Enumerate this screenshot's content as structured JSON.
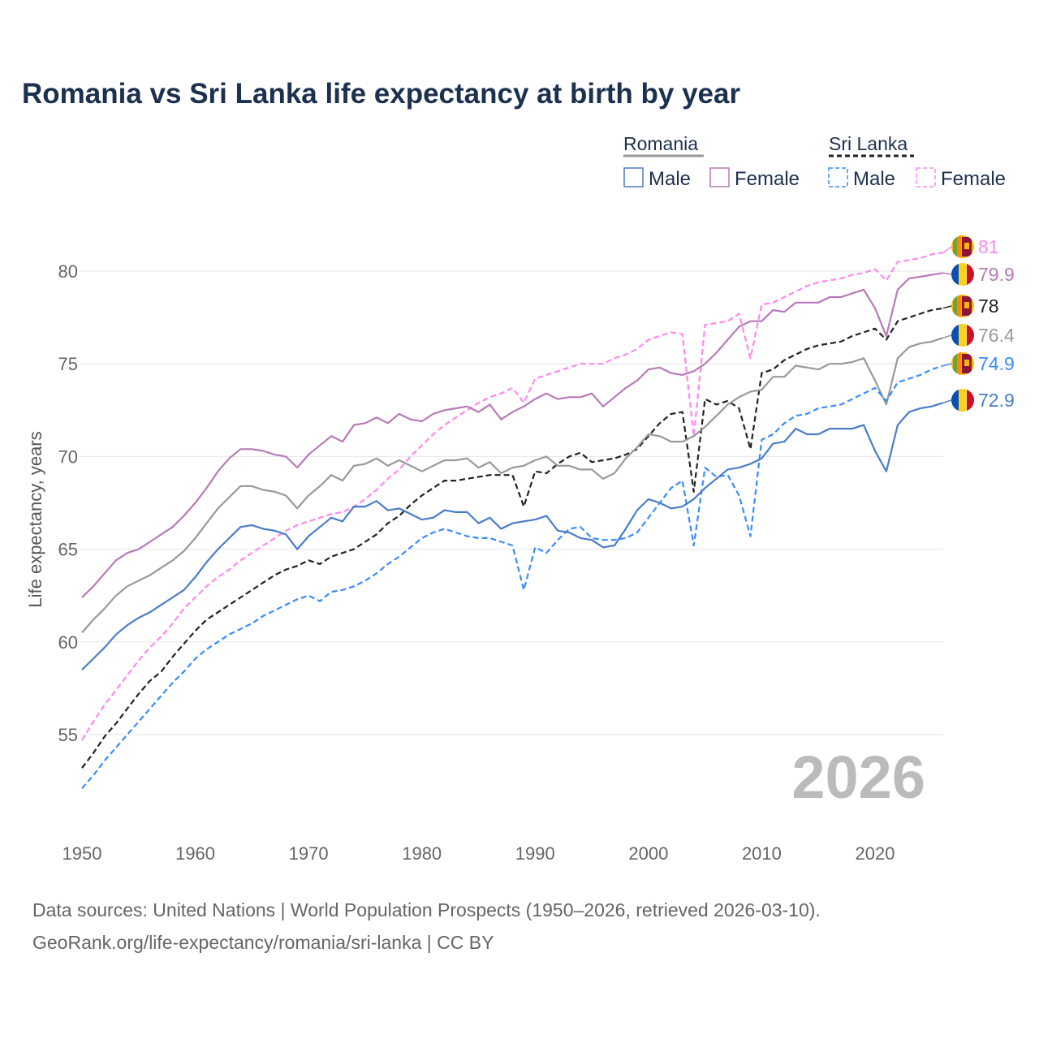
{
  "chart_data": {
    "type": "line",
    "title": "Romania vs Sri Lanka life expectancy at birth by year",
    "xlabel": "",
    "ylabel": "Life expectancy, years",
    "xlim": [
      1950,
      2026
    ],
    "ylim": [
      51,
      83
    ],
    "x_ticks": [
      1950,
      1960,
      1970,
      1980,
      1990,
      2000,
      2010,
      2020
    ],
    "y_ticks": [
      55,
      60,
      65,
      70,
      75,
      80
    ],
    "grid": true,
    "year_watermark": "2026",
    "legend": {
      "groups": [
        {
          "name": "Romania",
          "items": [
            "Male",
            "Female"
          ]
        },
        {
          "name": "Sri Lanka",
          "items": [
            "Male",
            "Female"
          ]
        }
      ]
    },
    "x_start": 1950,
    "series": [
      {
        "name": "Sri Lanka Female",
        "country": "Sri Lanka",
        "color": "#ff88ee",
        "dashed": true,
        "end_label": "81",
        "values": [
          54.7,
          55.7,
          56.6,
          57.4,
          58.2,
          59.0,
          59.7,
          60.3,
          61.0,
          61.8,
          62.4,
          63.0,
          63.5,
          63.9,
          64.4,
          64.8,
          65.2,
          65.6,
          66.0,
          66.3,
          66.5,
          66.7,
          66.9,
          67.0,
          67.3,
          67.7,
          68.2,
          68.8,
          69.3,
          70.0,
          70.6,
          71.2,
          71.7,
          72.1,
          72.5,
          72.9,
          73.2,
          73.4,
          73.7,
          72.9,
          74.2,
          74.4,
          74.6,
          74.8,
          75.0,
          75.0,
          75.0,
          75.3,
          75.5,
          75.8,
          76.3,
          76.5,
          76.7,
          76.6,
          71.1,
          77.1,
          77.2,
          77.3,
          77.7,
          75.3,
          78.2,
          78.3,
          78.6,
          78.9,
          79.2,
          79.4,
          79.5,
          79.6,
          79.8,
          79.9,
          80.1,
          79.5,
          80.5,
          80.6,
          80.7,
          80.9,
          81.0
        ]
      },
      {
        "name": "Romania Female",
        "country": "Romania",
        "color": "#b77ab8",
        "dashed": false,
        "end_label": "79.9",
        "values": [
          62.4,
          63.0,
          63.7,
          64.4,
          64.8,
          65.0,
          65.4,
          65.8,
          66.2,
          66.8,
          67.5,
          68.3,
          69.2,
          69.9,
          70.4,
          70.4,
          70.3,
          70.1,
          70.0,
          69.4,
          70.1,
          70.6,
          71.1,
          70.8,
          71.7,
          71.8,
          72.1,
          71.8,
          72.3,
          72.0,
          71.9,
          72.3,
          72.5,
          72.6,
          72.7,
          72.4,
          72.8,
          72.0,
          72.4,
          72.7,
          73.1,
          73.4,
          73.1,
          73.2,
          73.2,
          73.4,
          72.7,
          73.2,
          73.7,
          74.1,
          74.7,
          74.8,
          74.5,
          74.4,
          74.6,
          75.0,
          75.6,
          76.3,
          77.0,
          77.3,
          77.3,
          77.9,
          77.8,
          78.3,
          78.3,
          78.3,
          78.6,
          78.6,
          78.8,
          79.0,
          78.0,
          76.5,
          79.0,
          79.6,
          79.7,
          79.8,
          79.9
        ]
      },
      {
        "name": "Sri Lanka",
        "country": "Sri Lanka",
        "color": "#222222",
        "dashed": true,
        "end_label": "78",
        "values": [
          53.2,
          54.0,
          54.9,
          55.6,
          56.4,
          57.2,
          57.9,
          58.4,
          59.2,
          59.9,
          60.6,
          61.2,
          61.6,
          62.0,
          62.4,
          62.8,
          63.2,
          63.6,
          63.9,
          64.1,
          64.4,
          64.2,
          64.6,
          64.8,
          65.0,
          65.4,
          65.8,
          66.4,
          66.8,
          67.4,
          67.9,
          68.3,
          68.7,
          68.7,
          68.8,
          68.9,
          69.0,
          69.0,
          69.0,
          67.3,
          69.2,
          69.1,
          69.6,
          70.0,
          70.2,
          69.7,
          69.8,
          69.9,
          70.1,
          70.4,
          71.1,
          71.8,
          72.3,
          72.4,
          68.1,
          73.1,
          72.8,
          73.0,
          72.6,
          70.4,
          74.5,
          74.7,
          75.2,
          75.5,
          75.8,
          76.0,
          76.1,
          76.2,
          76.5,
          76.7,
          76.9,
          76.3,
          77.3,
          77.5,
          77.7,
          77.9,
          78.0
        ]
      },
      {
        "name": "Romania",
        "country": "Romania",
        "color": "#999999",
        "dashed": false,
        "end_label": "76.4",
        "values": [
          60.5,
          61.2,
          61.8,
          62.5,
          63.0,
          63.3,
          63.6,
          64.0,
          64.4,
          64.9,
          65.6,
          66.4,
          67.2,
          67.8,
          68.4,
          68.4,
          68.2,
          68.1,
          67.9,
          67.2,
          67.9,
          68.4,
          69.0,
          68.7,
          69.5,
          69.6,
          69.9,
          69.5,
          69.8,
          69.5,
          69.2,
          69.5,
          69.8,
          69.8,
          69.9,
          69.4,
          69.7,
          69.1,
          69.4,
          69.5,
          69.8,
          70.0,
          69.5,
          69.5,
          69.3,
          69.3,
          68.8,
          69.1,
          69.9,
          70.5,
          71.2,
          71.1,
          70.8,
          70.8,
          71.1,
          71.6,
          72.2,
          72.8,
          73.2,
          73.5,
          73.6,
          74.3,
          74.3,
          74.9,
          74.8,
          74.7,
          75.0,
          75.0,
          75.1,
          75.3,
          74.1,
          72.8,
          75.3,
          75.9,
          76.1,
          76.2,
          76.4
        ]
      },
      {
        "name": "Sri Lanka Male",
        "country": "Sri Lanka",
        "color": "#3a8cff",
        "dashed": true,
        "end_label": "74.9",
        "values": [
          52.1,
          52.8,
          53.6,
          54.3,
          55.0,
          55.7,
          56.4,
          57.1,
          57.8,
          58.4,
          59.1,
          59.6,
          60.0,
          60.4,
          60.7,
          61.0,
          61.4,
          61.7,
          62.0,
          62.3,
          62.5,
          62.2,
          62.7,
          62.8,
          63.0,
          63.3,
          63.7,
          64.2,
          64.6,
          65.1,
          65.6,
          65.9,
          66.1,
          65.9,
          65.7,
          65.6,
          65.6,
          65.4,
          65.2,
          62.8,
          65.1,
          64.8,
          65.5,
          66.1,
          66.2,
          65.6,
          65.5,
          65.5,
          65.6,
          65.9,
          66.7,
          67.5,
          68.3,
          68.7,
          65.2,
          69.4,
          68.9,
          69.0,
          67.9,
          65.7,
          70.9,
          71.2,
          71.8,
          72.2,
          72.3,
          72.6,
          72.7,
          72.8,
          73.1,
          73.4,
          73.7,
          73.0,
          74.0,
          74.2,
          74.4,
          74.7,
          74.9
        ]
      },
      {
        "name": "Romania Male",
        "country": "Romania",
        "color": "#4a7cc9",
        "dashed": false,
        "end_label": "72.9",
        "values": [
          58.5,
          59.1,
          59.7,
          60.4,
          60.9,
          61.3,
          61.6,
          62.0,
          62.4,
          62.8,
          63.5,
          64.3,
          65.0,
          65.6,
          66.2,
          66.3,
          66.1,
          66.0,
          65.8,
          65.0,
          65.7,
          66.2,
          66.7,
          66.5,
          67.3,
          67.3,
          67.6,
          67.1,
          67.2,
          66.9,
          66.6,
          66.7,
          67.1,
          67.0,
          67.0,
          66.4,
          66.7,
          66.1,
          66.4,
          66.5,
          66.6,
          66.8,
          66.0,
          65.9,
          65.6,
          65.5,
          65.1,
          65.2,
          66.1,
          67.1,
          67.7,
          67.5,
          67.2,
          67.3,
          67.7,
          68.3,
          68.8,
          69.3,
          69.4,
          69.6,
          69.9,
          70.7,
          70.8,
          71.5,
          71.2,
          71.2,
          71.5,
          71.5,
          71.5,
          71.7,
          70.3,
          69.2,
          71.7,
          72.4,
          72.6,
          72.7,
          72.9
        ]
      }
    ]
  },
  "page": {
    "title": "Romania vs Sri Lanka life expectancy at birth by year",
    "source_line1": "Data sources: United Nations | World Population Prospects (1950–2026, retrieved 2026-03-10).",
    "source_line2": "GeoRank.org/life-expectancy/romania/sri-lanka | CC BY"
  }
}
